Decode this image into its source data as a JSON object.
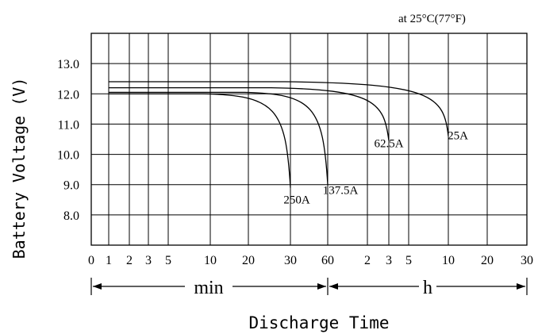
{
  "chart_data": {
    "type": "line",
    "condition_note": "at 25°C(77°F)",
    "ylabel": "Battery Voltage (V)",
    "xlabel": "Discharge Time",
    "y_ticks": [
      "13.0",
      "12.0",
      "11.0",
      "10.0",
      "9.0",
      "8.0"
    ],
    "ylim": [
      7.0,
      14.0
    ],
    "x_tick_labels": [
      "0",
      "1",
      "2",
      "3",
      "5",
      "10",
      "20",
      "30",
      "60",
      "2",
      "3",
      "5",
      "10",
      "20",
      "30"
    ],
    "x_min_label": "min",
    "x_h_label": "h",
    "grid": true,
    "series": [
      {
        "name": "250A",
        "label": "250A",
        "start_voltage": 12.0,
        "end_time_min": 30,
        "end_voltage": 8.9
      },
      {
        "name": "137.5A",
        "label": "137.5A",
        "start_voltage": 12.05,
        "end_time_min": 60,
        "end_voltage": 9.0
      },
      {
        "name": "62.5A",
        "label": "62.5A",
        "start_voltage": 12.2,
        "end_time_min": 180,
        "end_voltage": 10.45
      },
      {
        "name": "25A",
        "label": "25A",
        "start_voltage": 12.4,
        "end_time_min": 600,
        "end_voltage": 10.6
      }
    ]
  }
}
